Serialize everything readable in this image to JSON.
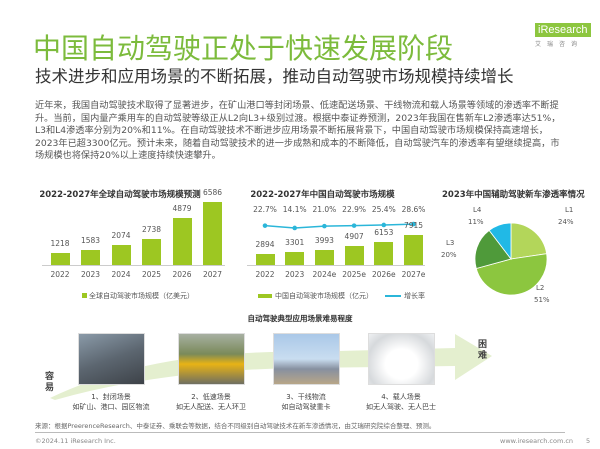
{
  "header": {
    "title": "中国自动驾驶正处于快速发展阶段",
    "subtitle": "技术进步和应用场景的不断拓展，推动自动驾驶市场规模持续增长",
    "logo_text": "iResearch",
    "logo_cn": "艾瑞咨询"
  },
  "paragraph": "近年来，我国自动驾驶技术取得了显著进步，在矿山港口等封闭场景、低速配送场景、干线物流和载人场景等领域的渗透率不断提升。当前，国内量产乘用车的自动驾驶等级正从L2向L3+级别过渡。根据中泰证券预测，2023年我国在售新车L2渗透率达51%，L3和L4渗透率分别为20%和11%。在自动驾驶技术不断进步应用场景不断拓展背景下，中国自动驾驶市场规模保持高速增长，2023年已超3300亿元。预计未来，随着自动驾驶技术的进一步成熟和成本的不断降低，自动驾驶汽车的渗透率有望继续提高，市场规模也将保持20%以上速度持续快速攀升。",
  "chart_data": [
    {
      "type": "bar",
      "title": "2022-2027年全球自动驾驶市场规模预测",
      "categories": [
        "2022",
        "2023",
        "2024",
        "2025",
        "2026",
        "2027"
      ],
      "series": [
        {
          "name": "全球自动驾驶市场规模（亿美元）",
          "values": [
            1218,
            1583,
            2074,
            2738,
            4879,
            6586
          ]
        }
      ],
      "color": "#9dc722"
    },
    {
      "type": "bar+line",
      "title": "2022-2027年中国自动驾驶市场规模",
      "categories": [
        "2022",
        "2023",
        "2024e",
        "2025e",
        "2026e",
        "2027e"
      ],
      "series": [
        {
          "name": "中国自动驾驶市场规模（亿元）",
          "values": [
            2894,
            3301,
            3993,
            4907,
            6153,
            7915
          ]
        },
        {
          "name": "增长率",
          "values": [
            "22.7%",
            "14.1%",
            "21.0%",
            "22.9%",
            "25.4%",
            "28.6%"
          ]
        }
      ],
      "colors": {
        "bar": "#9dc722",
        "line": "#2bb6d9"
      }
    },
    {
      "type": "pie",
      "title": "2023年中国辅助驾驶新车渗透率情况",
      "slices": [
        {
          "label": "L1",
          "value": 24,
          "text": "24%",
          "color": "#b3d65a"
        },
        {
          "label": "L2",
          "value": 51,
          "text": "51%",
          "color": "#8cc63f"
        },
        {
          "label": "L3",
          "value": 20,
          "text": "20%",
          "color": "#4f9a3a"
        },
        {
          "label": "L4",
          "value": 11,
          "text": "11%",
          "color": "#21b9e6"
        }
      ]
    }
  ],
  "scenarios": {
    "title": "自动驾驶典型应用场景难易程度",
    "easy": "容易",
    "hard": "困难",
    "items": [
      {
        "name": "1、封闭场景",
        "desc": "如矿山、港口、园区物流"
      },
      {
        "name": "2、低速场景",
        "desc": "如无人配送、无人环卫"
      },
      {
        "name": "3、干线物流",
        "desc": "如自动驾驶重卡"
      },
      {
        "name": "4、载人场景",
        "desc": "如无人驾驶、无人巴士"
      }
    ]
  },
  "footer": {
    "source": "来源：根据PreerenceResearch、中泰证券、乘联会等数据，结合不同级别自动驾驶技术在新车渗透情况，由艾瑞研究院综合整理、预测。",
    "copyright": "©2024.11 iResearch Inc.",
    "website": "www.iresearch.com.cn",
    "page": "5"
  }
}
